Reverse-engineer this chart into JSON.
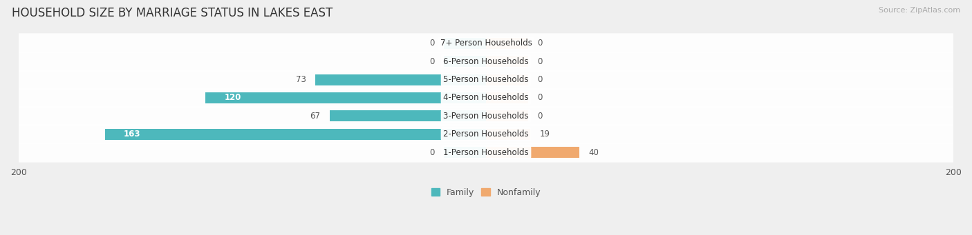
{
  "title": "HOUSEHOLD SIZE BY MARRIAGE STATUS IN LAKES EAST",
  "source": "Source: ZipAtlas.com",
  "categories": [
    "7+ Person Households",
    "6-Person Households",
    "5-Person Households",
    "4-Person Households",
    "3-Person Households",
    "2-Person Households",
    "1-Person Households"
  ],
  "family": [
    0,
    0,
    73,
    120,
    67,
    163,
    0
  ],
  "nonfamily": [
    0,
    0,
    0,
    0,
    0,
    19,
    40
  ],
  "family_color": "#4db8bc",
  "nonfamily_color": "#f0a96e",
  "zero_family_bar": 18,
  "zero_nonfamily_bar": 18,
  "xlim": 200,
  "bg_color": "#efefef",
  "row_bg_color": "#ffffff",
  "title_fontsize": 12,
  "label_fontsize": 8.5,
  "tick_fontsize": 9,
  "source_fontsize": 8
}
